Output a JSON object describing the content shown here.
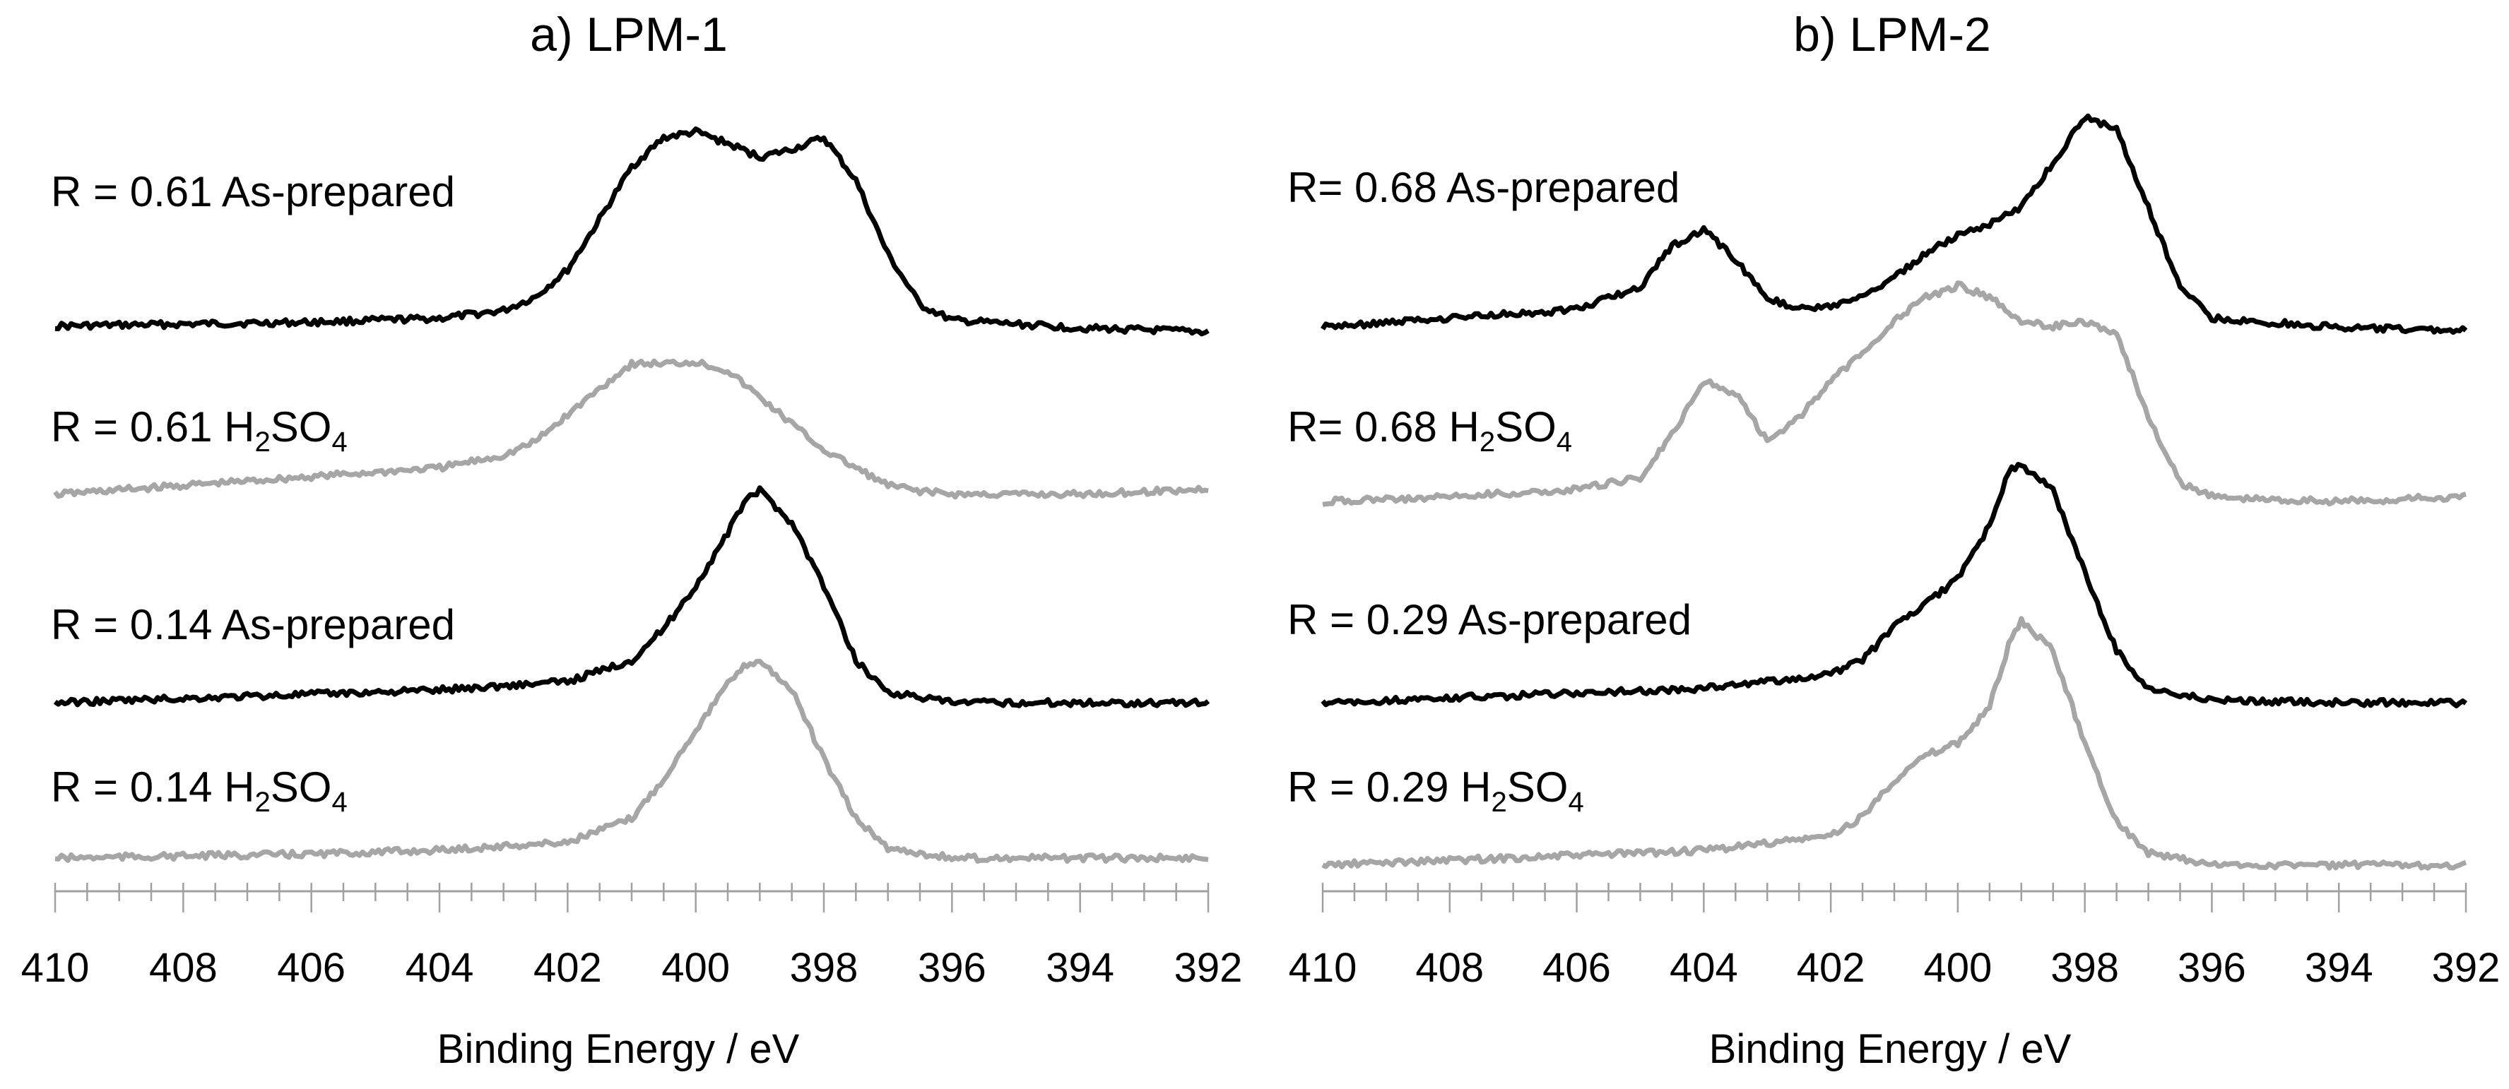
{
  "figure": {
    "colors": {
      "as_prepared": "#000000",
      "h2so4": "#a6a6a6",
      "axis": "#a0a0a0"
    },
    "x_axis_label": "Binding Energy / eV"
  },
  "chart_data": [
    {
      "type": "line",
      "title": "a) LPM-1",
      "xlabel": "Binding Energy / eV",
      "ylabel": "",
      "xlim": [
        410,
        392
      ],
      "x_reversed": true,
      "xticks": [
        410,
        408,
        406,
        404,
        402,
        400,
        398,
        396,
        394,
        392
      ],
      "xtick_labels": [
        "410",
        "408",
        "406",
        "404",
        "402",
        "400",
        "398",
        "396",
        "394",
        "392"
      ],
      "y_units": "arbitrary (stacked, offset traces)",
      "series": [
        {
          "name": "R = 0.61 As-prepared",
          "label_parts": [
            "R = 0.61 As-prepared"
          ],
          "color": "#000000",
          "x": [
            410,
            408,
            406,
            404,
            403,
            402.5,
            402,
            401.5,
            401,
            400.5,
            400,
            399.5,
            399,
            398.5,
            398,
            397.5,
            397,
            396.5,
            396,
            394,
            392
          ],
          "y": [
            0.03,
            0.04,
            0.05,
            0.07,
            0.11,
            0.18,
            0.32,
            0.58,
            0.85,
            1.0,
            1.03,
            0.97,
            0.9,
            0.94,
            1.0,
            0.78,
            0.4,
            0.14,
            0.06,
            0.02,
            0.0
          ]
        },
        {
          "name": "R = 0.61 H2SO4",
          "label_parts": [
            "R = 0.61 H",
            "2",
            "SO",
            "4"
          ],
          "color": "#a6a6a6",
          "x": [
            410,
            408,
            406,
            404,
            403,
            402.5,
            402,
            401.5,
            401,
            400.5,
            400,
            399.5,
            399,
            398.5,
            398,
            397.5,
            397,
            396.5,
            396,
            394,
            392
          ],
          "y": [
            0.0,
            0.05,
            0.1,
            0.15,
            0.22,
            0.3,
            0.45,
            0.6,
            0.74,
            0.74,
            0.75,
            0.7,
            0.55,
            0.4,
            0.25,
            0.15,
            0.05,
            0.02,
            0.0,
            0.0,
            0.03
          ]
        },
        {
          "name": "R = 0.14 As-prepared",
          "label_parts": [
            "R  = 0.14 As-prepared"
          ],
          "color": "#000000",
          "x": [
            410,
            408,
            406,
            404,
            402,
            401,
            400.5,
            400,
            399.5,
            399.2,
            399,
            398.5,
            398,
            397.5,
            397,
            396,
            394,
            392
          ],
          "y": [
            0.0,
            0.02,
            0.04,
            0.06,
            0.1,
            0.2,
            0.35,
            0.55,
            0.8,
            0.97,
            1.0,
            0.85,
            0.55,
            0.2,
            0.05,
            0.0,
            0.0,
            0.0
          ]
        },
        {
          "name": "R = 0.14 H2SO4",
          "label_parts": [
            "R = 0.14 H",
            "2",
            "SO",
            "4"
          ],
          "color": "#a6a6a6",
          "x": [
            410,
            408,
            406,
            404,
            402,
            401,
            400.5,
            400,
            399.5,
            399.2,
            399,
            398.5,
            398,
            397.5,
            397,
            396,
            394,
            392
          ],
          "y": [
            0.0,
            0.01,
            0.02,
            0.04,
            0.08,
            0.2,
            0.4,
            0.65,
            0.88,
            0.98,
            1.0,
            0.85,
            0.5,
            0.2,
            0.05,
            0.0,
            0.0,
            0.0
          ]
        }
      ]
    },
    {
      "type": "line",
      "title": "b) LPM-2",
      "xlabel": "Binding Energy / eV",
      "ylabel": "",
      "xlim": [
        410,
        392
      ],
      "x_reversed": true,
      "xticks": [
        410,
        408,
        406,
        404,
        402,
        400,
        398,
        396,
        394,
        392
      ],
      "xtick_labels": [
        "410",
        "408",
        "406",
        "404",
        "402",
        "400",
        "398",
        "396",
        "394",
        "392"
      ],
      "y_units": "arbitrary (stacked, offset traces)",
      "series": [
        {
          "name": "R= 0.68 As-prepared",
          "label_parts": [
            "R= 0.68 As-prepared"
          ],
          "color": "#000000",
          "x": [
            410,
            408,
            406,
            405,
            404.5,
            404,
            403.5,
            403,
            402.5,
            402,
            401.5,
            401,
            400.5,
            400,
            399.5,
            399,
            398.5,
            398,
            397.5,
            397,
            396.5,
            396,
            394,
            392
          ],
          "y": [
            0.02,
            0.06,
            0.1,
            0.2,
            0.38,
            0.45,
            0.32,
            0.15,
            0.1,
            0.11,
            0.15,
            0.24,
            0.35,
            0.43,
            0.48,
            0.55,
            0.75,
            0.95,
            0.9,
            0.55,
            0.2,
            0.06,
            0.02,
            0.01
          ]
        },
        {
          "name": "R= 0.68 H2SO4",
          "label_parts": [
            "R= 0.68 H",
            "2",
            "SO",
            "4"
          ],
          "color": "#a6a6a6",
          "x": [
            410,
            408,
            406,
            405,
            404.5,
            404,
            403.5,
            403,
            402.5,
            402,
            401.5,
            401,
            400.5,
            400,
            399.5,
            399,
            398.5,
            398,
            397.5,
            397,
            396.5,
            396,
            394,
            392
          ],
          "y": [
            0.0,
            0.02,
            0.05,
            0.1,
            0.28,
            0.5,
            0.45,
            0.25,
            0.35,
            0.5,
            0.62,
            0.75,
            0.85,
            0.9,
            0.85,
            0.75,
            0.73,
            0.75,
            0.7,
            0.35,
            0.08,
            0.02,
            0.0,
            0.02
          ]
        },
        {
          "name": "R = 0.29 As-prepared",
          "label_parts": [
            "R = 0.29 As-prepared"
          ],
          "color": "#000000",
          "x": [
            410,
            408,
            406,
            404,
            402,
            401.5,
            401,
            400.5,
            400,
            399.5,
            399.2,
            399,
            398.5,
            398,
            397.5,
            397,
            396,
            394,
            392
          ],
          "y": [
            0.0,
            0.02,
            0.04,
            0.06,
            0.12,
            0.18,
            0.32,
            0.42,
            0.52,
            0.75,
            0.98,
            1.0,
            0.9,
            0.55,
            0.22,
            0.06,
            0.01,
            0.0,
            0.0
          ]
        },
        {
          "name": "R = 0.29 H2SO4",
          "label_parts": [
            "R = 0.29 H",
            "2",
            "SO",
            "4"
          ],
          "color": "#a6a6a6",
          "x": [
            410,
            408,
            406,
            404,
            402,
            401.5,
            401,
            400.5,
            400,
            399.5,
            399.2,
            399,
            398.5,
            398,
            397.5,
            397,
            396,
            394,
            392
          ],
          "y": [
            0.0,
            0.02,
            0.04,
            0.06,
            0.12,
            0.2,
            0.35,
            0.45,
            0.5,
            0.65,
            0.9,
            1.0,
            0.88,
            0.5,
            0.18,
            0.05,
            0.0,
            0.0,
            0.0
          ]
        }
      ]
    }
  ]
}
